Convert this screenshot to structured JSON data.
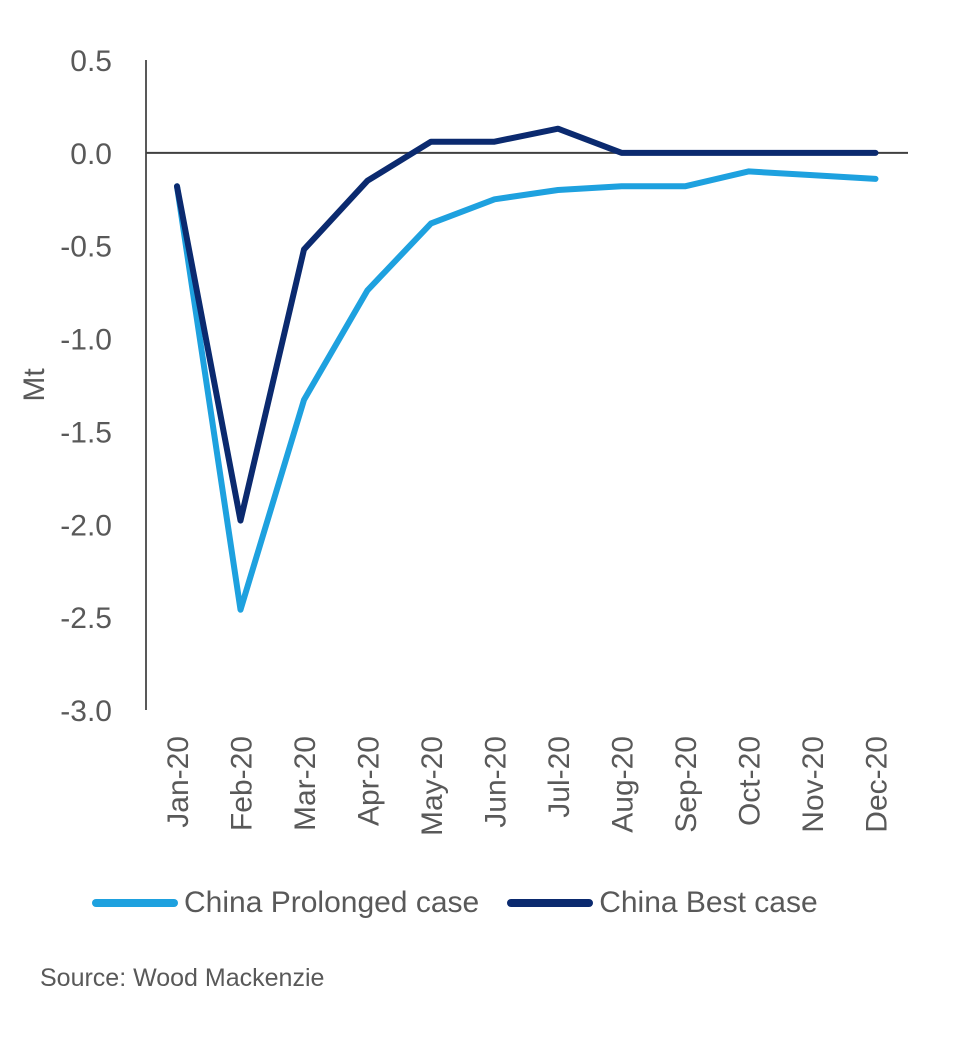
{
  "chart_data": {
    "type": "line",
    "categories": [
      "Jan-20",
      "Feb-20",
      "Mar-20",
      "Apr-20",
      "May-20",
      "Jun-20",
      "Jul-20",
      "Aug-20",
      "Sep-20",
      "Oct-20",
      "Nov-20",
      "Dec-20"
    ],
    "series": [
      {
        "name": "China Prolonged case",
        "color": "#1EA1DF",
        "values": [
          -0.18,
          -2.46,
          -1.33,
          -0.74,
          -0.38,
          -0.25,
          -0.2,
          -0.18,
          -0.18,
          -0.1,
          -0.12,
          -0.14
        ]
      },
      {
        "name": "China Best case",
        "color": "#0B2A6F",
        "values": [
          -0.18,
          -1.98,
          -0.52,
          -0.15,
          0.06,
          0.06,
          0.13,
          0.0,
          0.0,
          0.0,
          0.0,
          0.0
        ]
      }
    ],
    "ylabel": "Mt",
    "ylim": [
      -3.0,
      0.5
    ],
    "yticks": [
      "0.5",
      "0.0",
      "-0.5",
      "-1.0",
      "-1.5",
      "-2.0",
      "-2.5",
      "-3.0"
    ],
    "ytick_values": [
      0.5,
      0.0,
      -0.5,
      -1.0,
      -1.5,
      -2.0,
      -2.5,
      -3.0
    ],
    "grid": false,
    "legend_position": "bottom"
  },
  "source_text": "Source: Wood Mackenzie"
}
